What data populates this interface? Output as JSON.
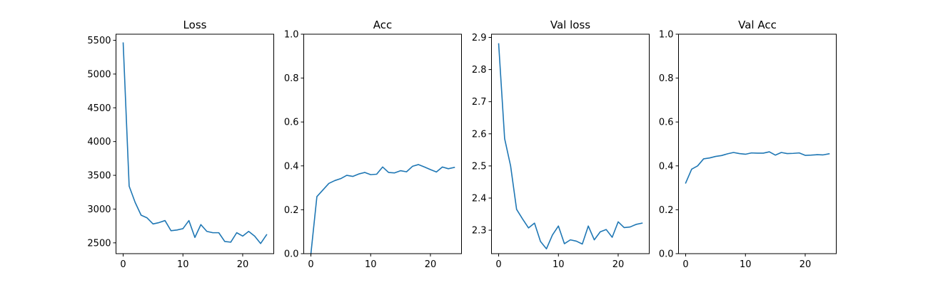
{
  "colors": {
    "line": "#1f77b4",
    "axes": "#000000",
    "background": "#ffffff"
  },
  "chart_data": [
    {
      "type": "line",
      "title": "Loss",
      "xlabel": "",
      "ylabel": "",
      "grid": false,
      "xlim": [
        -1.2,
        25.2
      ],
      "ylim": [
        2340,
        5590
      ],
      "xticks": [
        0,
        10,
        20
      ],
      "yticks": [
        2500,
        3000,
        3500,
        4000,
        4500,
        5000,
        5500
      ],
      "ytick_labels": [
        "2500",
        "3000",
        "3500",
        "4000",
        "4500",
        "5000",
        "5500"
      ],
      "x": [
        0,
        1,
        2,
        3,
        4,
        5,
        6,
        7,
        8,
        9,
        10,
        11,
        12,
        13,
        14,
        15,
        16,
        17,
        18,
        19,
        20,
        21,
        22,
        23,
        24
      ],
      "values": [
        5460,
        3340,
        3100,
        2910,
        2870,
        2780,
        2800,
        2830,
        2680,
        2690,
        2710,
        2830,
        2580,
        2770,
        2670,
        2650,
        2650,
        2520,
        2510,
        2650,
        2600,
        2670,
        2600,
        2490,
        2620
      ]
    },
    {
      "type": "line",
      "title": "Acc",
      "xlabel": "",
      "ylabel": "",
      "grid": false,
      "xlim": [
        -1.2,
        25.2
      ],
      "ylim": [
        0,
        1
      ],
      "xticks": [
        0,
        10,
        20
      ],
      "yticks": [
        0,
        0.2,
        0.4,
        0.6,
        0.8,
        1.0
      ],
      "ytick_labels": [
        "0.0",
        "0.2",
        "0.4",
        "0.6",
        "0.8",
        "1.0"
      ],
      "x": [
        0,
        1,
        2,
        3,
        4,
        5,
        6,
        7,
        8,
        9,
        10,
        11,
        12,
        13,
        14,
        15,
        16,
        17,
        18,
        19,
        20,
        21,
        22,
        23,
        24
      ],
      "values": [
        0.0,
        0.26,
        0.29,
        0.32,
        0.333,
        0.342,
        0.357,
        0.352,
        0.363,
        0.37,
        0.36,
        0.362,
        0.395,
        0.37,
        0.368,
        0.378,
        0.373,
        0.398,
        0.406,
        0.395,
        0.383,
        0.372,
        0.395,
        0.387,
        0.393
      ]
    },
    {
      "type": "line",
      "title": "Val loss",
      "xlabel": "",
      "ylabel": "",
      "grid": false,
      "xlim": [
        -1.2,
        25.2
      ],
      "ylim": [
        2.227,
        2.91
      ],
      "xticks": [
        0,
        10,
        20
      ],
      "yticks": [
        2.3,
        2.4,
        2.5,
        2.6,
        2.7,
        2.8,
        2.9
      ],
      "ytick_labels": [
        "2.3",
        "2.4",
        "2.5",
        "2.6",
        "2.7",
        "2.8",
        "2.9"
      ],
      "x": [
        0,
        1,
        2,
        3,
        4,
        5,
        6,
        7,
        8,
        9,
        10,
        11,
        12,
        13,
        14,
        15,
        16,
        17,
        18,
        19,
        20,
        21,
        22,
        23,
        24
      ],
      "values": [
        2.88,
        2.585,
        2.5,
        2.365,
        2.335,
        2.307,
        2.322,
        2.265,
        2.242,
        2.285,
        2.313,
        2.258,
        2.27,
        2.266,
        2.257,
        2.313,
        2.27,
        2.295,
        2.302,
        2.278,
        2.326,
        2.308,
        2.31,
        2.318,
        2.322
      ]
    },
    {
      "type": "line",
      "title": "Val Acc",
      "xlabel": "",
      "ylabel": "",
      "grid": false,
      "xlim": [
        -1.2,
        25.2
      ],
      "ylim": [
        0,
        1
      ],
      "xticks": [
        0,
        10,
        20
      ],
      "yticks": [
        0,
        0.2,
        0.4,
        0.6,
        0.8,
        1.0
      ],
      "ytick_labels": [
        "0.0",
        "0.2",
        "0.4",
        "0.6",
        "0.8",
        "1.0"
      ],
      "x": [
        0,
        1,
        2,
        3,
        4,
        5,
        6,
        7,
        8,
        9,
        10,
        11,
        12,
        13,
        14,
        15,
        16,
        17,
        18,
        19,
        20,
        21,
        22,
        23,
        24
      ],
      "values": [
        0.322,
        0.385,
        0.4,
        0.432,
        0.436,
        0.443,
        0.447,
        0.455,
        0.461,
        0.456,
        0.453,
        0.459,
        0.458,
        0.458,
        0.464,
        0.449,
        0.461,
        0.456,
        0.457,
        0.459,
        0.448,
        0.449,
        0.451,
        0.45,
        0.455
      ]
    }
  ]
}
